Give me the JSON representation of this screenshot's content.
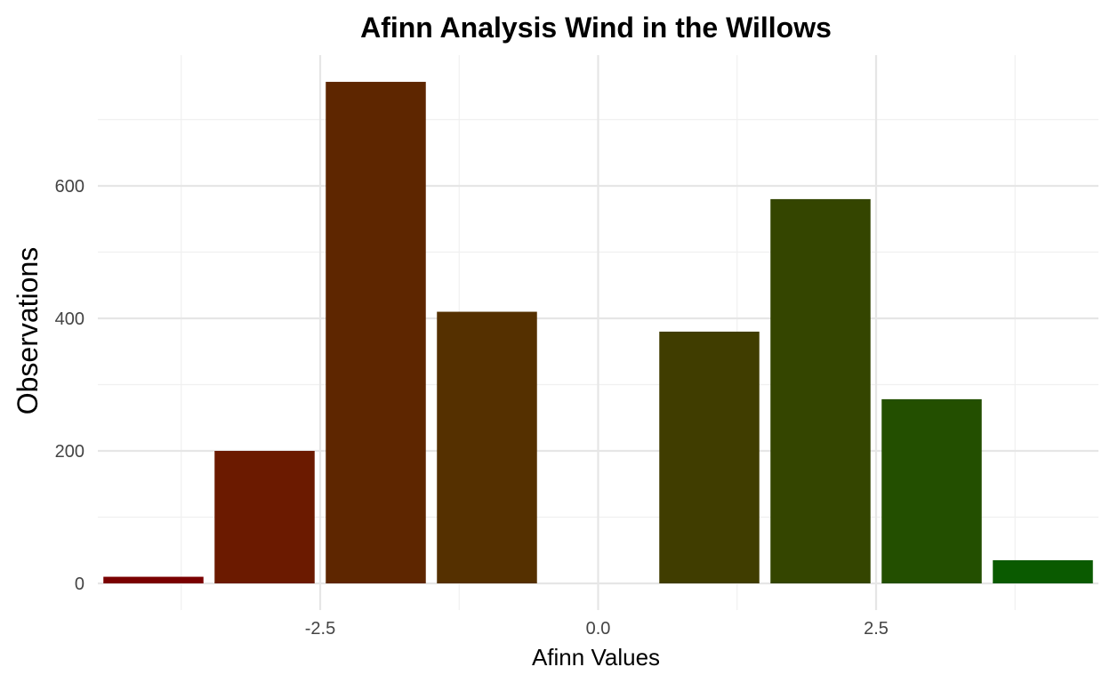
{
  "chart_data": {
    "type": "bar",
    "title": "Afinn Analysis Wind in the Willows",
    "xlabel": "Afinn Values",
    "ylabel": "Observations",
    "x": [
      -4,
      -3,
      -2,
      -1,
      1,
      2,
      3,
      4
    ],
    "values": [
      10,
      200,
      757,
      410,
      380,
      580,
      278,
      35
    ],
    "colors": [
      "#7a0000",
      "#6b1a00",
      "#5e2600",
      "#553000",
      "#403d00",
      "#344500",
      "#234f00",
      "#0a5a00"
    ],
    "xlim": [
      -4.5,
      4.5
    ],
    "ylim": [
      0,
      760
    ],
    "x_ticks": [
      -2.5,
      0.0,
      2.5
    ],
    "x_tick_labels": [
      "-2.5",
      "0.0",
      "2.5"
    ],
    "x_minor_ticks": [
      -3.75,
      -1.25,
      1.25,
      3.75
    ],
    "y_ticks": [
      0,
      200,
      400,
      600
    ],
    "y_tick_labels": [
      "0",
      "200",
      "400",
      "600"
    ],
    "y_minor_ticks": [
      100,
      300,
      500,
      700
    ],
    "grid": true,
    "legend": "none",
    "theme": "minimal"
  }
}
